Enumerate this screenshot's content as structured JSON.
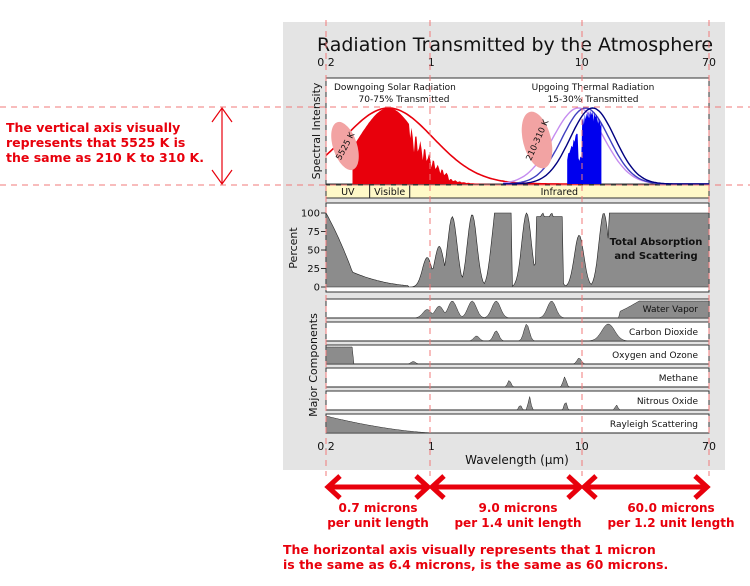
{
  "chart_data": {
    "type": "area",
    "title": "Radiation Transmitted by the Atmosphere",
    "xlabel": "Wavelength (µm)",
    "x_scale": "log",
    "xlim": [
      0.2,
      70
    ],
    "x_ticks": [
      "0.2",
      "1",
      "10",
      "70"
    ],
    "spectrum_panel": {
      "ylabel": "Spectral Intensity",
      "solar": {
        "heading": "Downgoing Solar Radiation",
        "transmitted": "70-75% Transmitted",
        "temperature": "5525 K",
        "peak_micron": 0.52
      },
      "thermal": {
        "heading": "Upgoing Thermal Radiation",
        "transmitted": "15-30% Transmitted",
        "temperature": "210-310 K",
        "peak_micron": 11.5
      },
      "bands": [
        {
          "label": "UV",
          "from": 0.2,
          "to": 0.39
        },
        {
          "label": "Visible",
          "from": 0.39,
          "to": 0.72
        },
        {
          "label": "Infrared",
          "from": 0.72,
          "to": 70
        }
      ]
    },
    "absorption_panel": {
      "ylabel": "Percent",
      "y_ticks": [
        "100",
        "75",
        "50",
        "25",
        "0"
      ],
      "ylim": [
        0,
        100
      ],
      "label": "Total Absorption and Scattering",
      "label_lines": [
        "Total Absorption",
        "and Scattering"
      ]
    },
    "components_ylabel": "Major Components",
    "components": [
      "Water Vapor",
      "Carbon Dioxide",
      "Oxygen and Ozone",
      "Methane",
      "Nitrous Oxide",
      "Rayleigh Scattering"
    ]
  },
  "annotations": {
    "vertical_lines": [
      "The vertical axis visually",
      "represents that 5525 K is",
      "the same as 210 K to 310 K."
    ],
    "horizontal_lines": [
      "The horizontal axis visually represents that 1 micron",
      "is the same as 6.4 microns, is the same as 60 microns."
    ],
    "segments": [
      {
        "line1": "0.7 microns",
        "line2": "per unit length"
      },
      {
        "line1": "9.0 microns",
        "line2": "per 1.4 unit length"
      },
      {
        "line1": "60.0 microns",
        "line2": "per 1.2 unit length"
      }
    ]
  },
  "colors": {
    "annotation": "#e8000c",
    "solar_fill": "#e8000c",
    "thermal_fill": "#0000ee",
    "absorption_fill": "#8c8c8c",
    "figure_background": "#e4e4e4",
    "band_fill": "#fff9c8"
  }
}
